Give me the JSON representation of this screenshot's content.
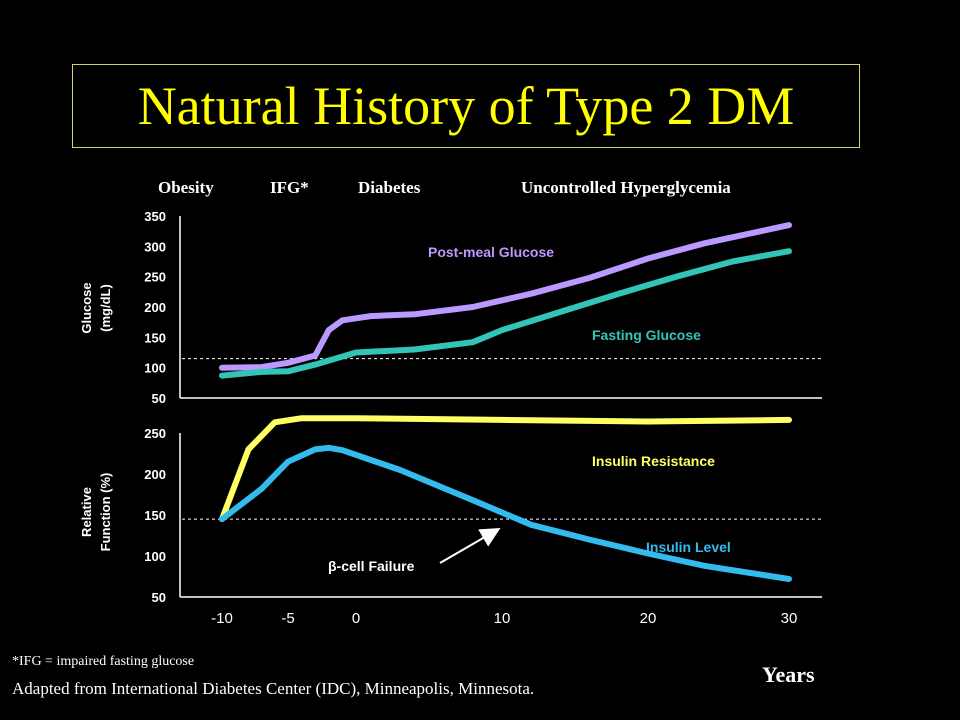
{
  "title": "Natural History of Type 2 DM",
  "phases": [
    "Obesity",
    "IFG*",
    "Diabetes",
    "Uncontrolled Hyperglycemia"
  ],
  "footnote": "*IFG = impaired fasting glucose",
  "source": "Adapted from International Diabetes Center (IDC), Minneapolis, Minnesota.",
  "x_axis_title": "Years",
  "colors": {
    "background": "#000000",
    "title": "#ffff00",
    "post_meal": "#bb99ff",
    "fasting": "#33c4b8",
    "insulin_resistance": "#ffff66",
    "insulin_level": "#33bbee"
  },
  "chart_data": [
    {
      "type": "line",
      "ylabel": "Glucose (mg/dL)",
      "ylim": [
        50,
        350
      ],
      "yticks": [
        350,
        300,
        250,
        200,
        150,
        100,
        50
      ],
      "x_tick_labels": [
        "-10",
        "-5",
        "0",
        "10",
        "20",
        "30"
      ],
      "x_tick_positions": [
        -10,
        -5,
        0,
        10,
        20,
        30
      ],
      "reference_line": 115,
      "grid": false,
      "series": [
        {
          "name": "Post-meal Glucose",
          "x": [
            -10,
            -7,
            -5,
            -3,
            -2,
            -1,
            1,
            4,
            8,
            12,
            16,
            20,
            24,
            28,
            30
          ],
          "values": [
            100,
            101,
            108,
            120,
            162,
            178,
            185,
            188,
            200,
            222,
            248,
            280,
            305,
            325,
            335
          ]
        },
        {
          "name": "Fasting Glucose",
          "x": [
            -10,
            -7,
            -5,
            -3,
            0,
            4,
            8,
            10,
            14,
            18,
            22,
            26,
            30
          ],
          "values": [
            87,
            93,
            94,
            105,
            125,
            130,
            142,
            162,
            192,
            222,
            250,
            275,
            292
          ]
        }
      ]
    },
    {
      "type": "line",
      "ylabel": "Relative Function (%)",
      "ylim": [
        50,
        250
      ],
      "yticks": [
        250,
        200,
        150,
        100,
        50
      ],
      "x_tick_labels": [
        "-10",
        "-5",
        "0",
        "10",
        "20",
        "30"
      ],
      "x_tick_positions": [
        -10,
        -5,
        0,
        10,
        20,
        30
      ],
      "reference_line": 145,
      "grid": false,
      "annotation": "β-cell Failure",
      "series": [
        {
          "name": "Insulin Resistance",
          "x": [
            -10,
            -8,
            -6,
            -4,
            0,
            10,
            20,
            30
          ],
          "values": [
            145,
            230,
            263,
            268,
            268,
            266,
            264,
            266
          ]
        },
        {
          "name": "Insulin Level",
          "x": [
            -10,
            -7,
            -5,
            -3,
            -2,
            -1,
            3,
            8,
            12,
            16,
            20,
            24,
            30
          ],
          "values": [
            145,
            182,
            215,
            230,
            232,
            229,
            205,
            168,
            138,
            120,
            103,
            88,
            72
          ]
        }
      ]
    }
  ]
}
